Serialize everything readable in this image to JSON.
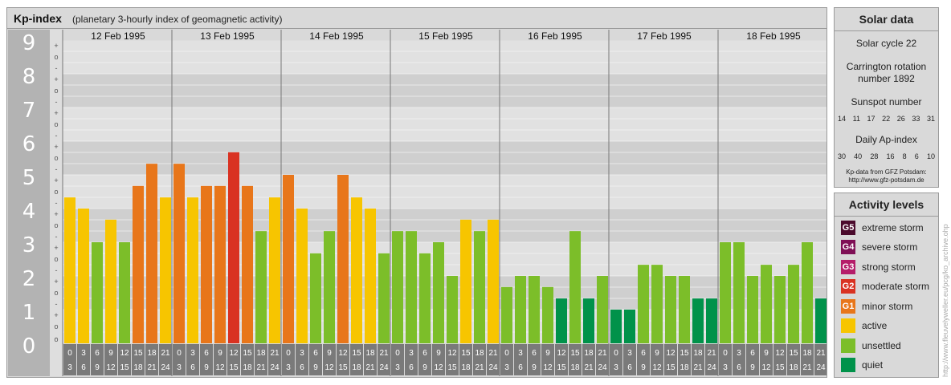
{
  "header": {
    "title": "Kp-index",
    "subtitle": "(planetary 3-hourly index of geomagnetic activity)"
  },
  "solar": {
    "title": "Solar data",
    "cycle_text": "Solar cycle 22",
    "carrington_line1": "Carrington rotation",
    "carrington_line2": "number 1892",
    "sunspot_title": "Sunspot number",
    "sunspot_values": [
      "14",
      "11",
      "17",
      "22",
      "26",
      "33",
      "31"
    ],
    "ap_title": "Daily Ap-index",
    "ap_values": [
      "30",
      "40",
      "28",
      "16",
      "8",
      "6",
      "10"
    ],
    "source_line1": "Kp-data from GFZ Potsdam:",
    "source_line2": "http://www.gfz-potsdam.de"
  },
  "levels": {
    "title": "Activity levels",
    "items": [
      {
        "badge": "G5",
        "label": "extreme storm",
        "color": "#4b0a2c"
      },
      {
        "badge": "G4",
        "label": "severe storm",
        "color": "#7f0f55"
      },
      {
        "badge": "G3",
        "label": "strong storm",
        "color": "#b51d6a"
      },
      {
        "badge": "G2",
        "label": "moderate storm",
        "color": "#d93222"
      },
      {
        "badge": "G1",
        "label": "minor storm",
        "color": "#e8761a"
      },
      {
        "badge": "",
        "label": "active",
        "color": "#f7c500"
      },
      {
        "badge": "",
        "label": "unsettled",
        "color": "#7cbe29"
      },
      {
        "badge": "",
        "label": "quiet",
        "color": "#00924a"
      }
    ]
  },
  "vertical_credit": "http://www.fleuvelyweller.eu/pcg/ko_archive.ohp",
  "chart_data": {
    "type": "bar",
    "ylim": [
      0,
      9
    ],
    "y_ticks": [
      "0",
      "1",
      "2",
      "3",
      "4",
      "5",
      "6",
      "7",
      "8",
      "9"
    ],
    "y_minor_marks": [
      "+",
      "o",
      "-"
    ],
    "days": [
      "12 Feb 1995",
      "13 Feb 1995",
      "14 Feb 1995",
      "15 Feb 1995",
      "16 Feb 1995",
      "17 Feb 1995",
      "18 Feb 1995"
    ],
    "interval_starts": [
      "0",
      "3",
      "6",
      "9",
      "12",
      "15",
      "18",
      "21"
    ],
    "interval_ends": [
      "3",
      "6",
      "9",
      "12",
      "15",
      "18",
      "21",
      "24"
    ],
    "values": [
      [
        4.33,
        4.0,
        3.0,
        3.67,
        3.0,
        4.67,
        5.33,
        4.33
      ],
      [
        5.33,
        4.33,
        4.67,
        4.67,
        5.67,
        4.67,
        3.33,
        4.33
      ],
      [
        5.0,
        4.0,
        2.67,
        3.33,
        5.0,
        4.33,
        4.0,
        2.67
      ],
      [
        3.33,
        3.33,
        2.67,
        3.0,
        2.0,
        3.67,
        3.33,
        3.67
      ],
      [
        1.67,
        2.0,
        2.0,
        1.67,
        1.33,
        3.33,
        1.33,
        2.0
      ],
      [
        1.0,
        1.0,
        2.33,
        2.33,
        2.0,
        2.0,
        1.33,
        1.33
      ],
      [
        3.0,
        3.0,
        2.0,
        2.33,
        2.0,
        2.33,
        3.0,
        1.33
      ]
    ],
    "colors": {
      "quiet": "#00924a",
      "unsettled": "#7cbe29",
      "active": "#f7c500",
      "minor_storm": "#e8761a",
      "moderate_storm": "#d93222"
    }
  }
}
